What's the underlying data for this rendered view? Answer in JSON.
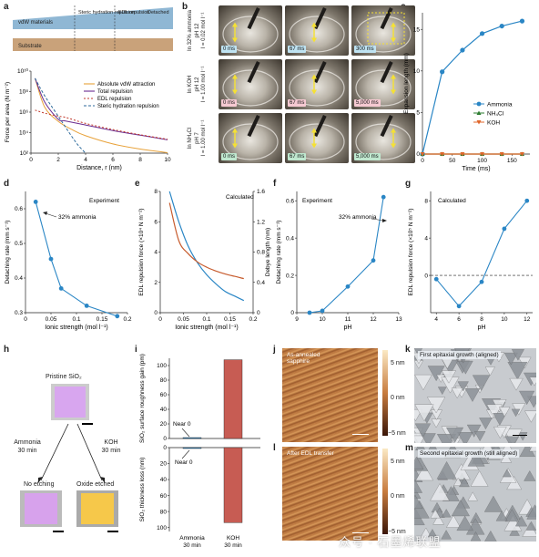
{
  "panels": {
    "a": {
      "letter": "a",
      "schematic_labels": [
        "vdW materials",
        "Substrate",
        "Steric hydration repulsion",
        "EDL repulsion",
        "Detached"
      ]
    },
    "b": {
      "letter": "b",
      "row_labels": [
        [
          "In 32% ammonia",
          "pH 12",
          "I = 0.02 mol l⁻¹"
        ],
        [
          "In KOH",
          "pH 12",
          "I = 1.00 mol l⁻¹"
        ],
        [
          "In NH₄Cl",
          "pH 7",
          "I = 1.00 mol l⁻¹"
        ]
      ],
      "times": [
        [
          "0 ms",
          "67 ms",
          "300 ms"
        ],
        [
          "0 ms",
          "67 ms",
          "5,000 ms"
        ],
        [
          "0 ms",
          "67 ms",
          "5,000 ms"
        ]
      ],
      "tag_colors": [
        "#bfe3f2",
        "#f6c9d2",
        "#bfe8cf"
      ]
    },
    "c": {
      "letter": "c"
    },
    "d": {
      "letter": "d"
    },
    "e": {
      "letter": "e"
    },
    "f": {
      "letter": "f"
    },
    "g": {
      "letter": "g"
    },
    "h": {
      "letter": "h",
      "pristine": "Pristine SiO₂",
      "left_arrow": [
        "Ammonia",
        "30 min"
      ],
      "right_arrow": [
        "KOH",
        "30 min"
      ],
      "left_result": "No etching",
      "right_result": "Oxide etched"
    },
    "i": {
      "letter": "i"
    },
    "j": {
      "letter": "j",
      "label": "As-annealed sapphire",
      "scale": [
        "5 nm",
        "0 nm",
        "−5 nm"
      ]
    },
    "k": {
      "letter": "k",
      "label": "First epitaxial growth (aligned)"
    },
    "l": {
      "letter": "l",
      "label": "After EDL transfer",
      "scale": [
        "5 nm",
        "0 nm",
        "−5 nm"
      ]
    },
    "m": {
      "letter": "m",
      "label": "Second epitaxial growth (still aligned)"
    }
  },
  "watermark": "众号 · 石墨烯联盟",
  "chart_data": [
    {
      "panel": "a",
      "type": "line",
      "xlabel": "Distance, r (nm)",
      "ylabel": "Force per area (N m⁻²)",
      "xlim": [
        0,
        10
      ],
      "ylim_log": [
        2,
        10
      ],
      "xticks": [
        0,
        2,
        4,
        6,
        8,
        10
      ],
      "ytick_labels": [
        "10²",
        "10⁴",
        "10⁶",
        "10⁸",
        "10¹⁰"
      ],
      "series": [
        {
          "name": "Absolute vdW attraction",
          "color": "#e8a23a",
          "dash": "",
          "x": [
            0.3,
            1,
            2,
            3,
            4,
            6,
            8,
            10
          ],
          "y": [
            9.3,
            6.5,
            5.1,
            4.3,
            3.7,
            2.9,
            2.4,
            2.05
          ]
        },
        {
          "name": "Total repulsion",
          "color": "#6a2c8f",
          "dash": "",
          "x": [
            0.3,
            1,
            2,
            2.5,
            4,
            6,
            8,
            10
          ],
          "y": [
            9.3,
            7.0,
            5.3,
            5.15,
            4.75,
            4.2,
            3.75,
            3.3
          ]
        },
        {
          "name": "EDL repulsion",
          "color": "#c0392b",
          "dash": "2,2",
          "x": [
            0.3,
            1,
            2,
            2.5,
            4,
            6,
            8,
            10
          ],
          "y": [
            6.2,
            5.9,
            5.6,
            5.5,
            4.9,
            4.3,
            3.8,
            3.35
          ]
        },
        {
          "name": "Steric hydration repulsion",
          "color": "#2c6a9b",
          "dash": "3,2",
          "x": [
            0.3,
            1,
            2,
            3,
            3.5,
            4
          ],
          "y": [
            9.3,
            7.6,
            5.6,
            3.6,
            2.7,
            2.0
          ]
        }
      ]
    },
    {
      "panel": "c",
      "type": "line",
      "xlabel": "Time (ms)",
      "ylabel": "Expansion length (mm)",
      "xlim": [
        0,
        180
      ],
      "ylim": [
        0,
        17
      ],
      "xticks": [
        0,
        50,
        100,
        150
      ],
      "yticks": [
        0,
        5,
        10,
        15
      ],
      "series": [
        {
          "name": "Ammonia",
          "color": "#2a86c5",
          "marker": "circle",
          "x": [
            0,
            33,
            67,
            100,
            133,
            167
          ],
          "y": [
            0,
            9.9,
            12.5,
            14.5,
            15.4,
            16.0
          ]
        },
        {
          "name": "NH₄Cl",
          "color": "#2e7d32",
          "marker": "triangle-up",
          "x": [
            0,
            33,
            67,
            100,
            133,
            167
          ],
          "y": [
            0,
            0,
            0,
            0,
            0,
            0
          ]
        },
        {
          "name": "KOH",
          "color": "#e0662a",
          "marker": "triangle-down",
          "x": [
            0,
            33,
            67,
            100,
            133,
            167
          ],
          "y": [
            0,
            0,
            0,
            0,
            0,
            0
          ]
        }
      ]
    },
    {
      "panel": "d",
      "type": "line",
      "title": "Experiment",
      "xlabel": "Ionic strength (mol l⁻¹)",
      "ylabel": "Detaching rate (mm s⁻¹)",
      "xlim": [
        0,
        0.2
      ],
      "ylim": [
        0.3,
        0.65
      ],
      "xticks": [
        0,
        0.05,
        0.1,
        0.15,
        0.2
      ],
      "yticks": [
        0.3,
        0.4,
        0.5,
        0.6
      ],
      "annotation": "32% ammonia",
      "series": [
        {
          "color": "#2a86c5",
          "x": [
            0.02,
            0.05,
            0.07,
            0.12,
            0.18
          ],
          "y": [
            0.62,
            0.455,
            0.37,
            0.32,
            0.29
          ]
        }
      ]
    },
    {
      "panel": "e",
      "type": "line",
      "title": "Calculated",
      "xlabel": "Ionic strength (mol l⁻¹)",
      "ylabel": "EDL repulsion force (×10⁴ N m⁻²)",
      "ylabel2": "Debye length (nm)",
      "xlim": [
        0,
        0.2
      ],
      "ylim": [
        0,
        8
      ],
      "ylim2": [
        0,
        1.6
      ],
      "xticks": [
        0,
        0.05,
        0.1,
        0.15,
        0.2
      ],
      "yticks": [
        0,
        2,
        4,
        6,
        8
      ],
      "yticks2": [
        0,
        0.4,
        0.8,
        1.2,
        1.6
      ],
      "series": [
        {
          "name": "EDL repulsion force",
          "color": "#2a86c5",
          "axis": "left",
          "x": [
            0.02,
            0.04,
            0.06,
            0.08,
            0.1,
            0.12,
            0.14,
            0.16,
            0.18
          ],
          "y": [
            8.0,
            6.0,
            4.4,
            3.3,
            2.5,
            1.9,
            1.4,
            1.1,
            0.8
          ]
        },
        {
          "name": "Debye length",
          "color": "#c75c2e",
          "axis": "right",
          "x": [
            0.02,
            0.04,
            0.06,
            0.08,
            0.1,
            0.12,
            0.14,
            0.16,
            0.18
          ],
          "y": [
            1.45,
            0.95,
            0.78,
            0.67,
            0.6,
            0.55,
            0.51,
            0.48,
            0.45
          ]
        }
      ]
    },
    {
      "panel": "f",
      "type": "line",
      "title": "Experiment",
      "xlabel": "pH",
      "ylabel": "Detaching rate (mm s⁻¹)",
      "xlim": [
        9,
        13
      ],
      "ylim": [
        0,
        0.65
      ],
      "xticks": [
        9,
        10,
        11,
        12,
        13
      ],
      "yticks": [
        0,
        0.2,
        0.4,
        0.6
      ],
      "annotation": "32% ammonia",
      "series": [
        {
          "color": "#2a86c5",
          "x": [
            9.5,
            10,
            11,
            12,
            12.4
          ],
          "y": [
            0,
            0.01,
            0.14,
            0.28,
            0.62
          ]
        }
      ]
    },
    {
      "panel": "g",
      "type": "line",
      "title": "Calculated",
      "xlabel": "pH",
      "ylabel": "EDL repulsion force (×10⁵ N m⁻²)",
      "xlim": [
        3.5,
        12.5
      ],
      "ylim": [
        -4,
        9
      ],
      "xticks": [
        4,
        6,
        8,
        10,
        12
      ],
      "yticks": [
        0,
        4,
        8
      ],
      "series": [
        {
          "color": "#2a86c5",
          "x": [
            4,
            6,
            8,
            10,
            12
          ],
          "y": [
            -0.4,
            -3.3,
            -0.7,
            5.0,
            8.0
          ]
        }
      ]
    },
    {
      "panel": "i",
      "type": "bar",
      "categories": [
        "Ammonia\n30 min",
        "KOH\n30 min"
      ],
      "top": {
        "ylabel": "SiO₂ surface roughness gain (pm)",
        "ylim": [
          0,
          110
        ],
        "yticks": [
          0,
          20,
          40,
          60,
          80,
          100
        ],
        "values": [
          0,
          108
        ],
        "annotation": "Near 0"
      },
      "bottom": {
        "ylabel": "SiO₂ thickness loss (nm)",
        "ylim": [
          0,
          105
        ],
        "yticks": [
          0,
          20,
          40,
          60,
          80,
          100
        ],
        "values": [
          0,
          94
        ],
        "annotation": "Near 0"
      },
      "colors": [
        "#2a86c5",
        "#c75c53"
      ]
    }
  ]
}
